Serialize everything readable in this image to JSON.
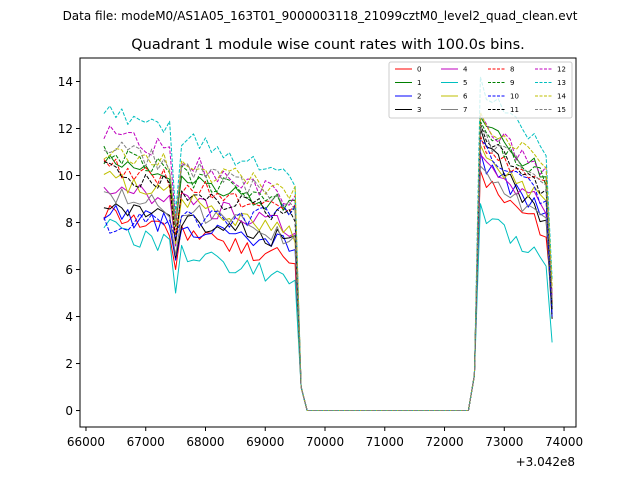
{
  "chart_data": {
    "type": "line",
    "suptitle": "Data file: modeM0/AS1A05_163T01_9000003118_21099cztM0_level2_quad_clean.evt",
    "title": "Quadrant 1 module wise count rates with 100.0s bins.",
    "xlabel": "",
    "ylabel": "",
    "x_offset_label": "+3.042e8",
    "xlim": [
      65900,
      74200
    ],
    "ylim": [
      -0.7,
      15.0
    ],
    "xticks": [
      66000,
      67000,
      68000,
      69000,
      70000,
      71000,
      72000,
      73000,
      74000
    ],
    "yticks": [
      0,
      2,
      4,
      6,
      8,
      10,
      12,
      14
    ],
    "xtick_labels": [
      "66000",
      "67000",
      "68000",
      "69000",
      "70000",
      "71000",
      "72000",
      "73000",
      "74000"
    ],
    "ytick_labels": [
      "0",
      "2",
      "4",
      "6",
      "8",
      "10",
      "12",
      "14"
    ],
    "legend_position": "top-right",
    "legend_columns": 4,
    "segments": {
      "seg1_x_start": 66300,
      "seg1_x_end": 69500,
      "gap_x_start": 69700,
      "gap_x_end": 72400,
      "seg2_x_start": 72600,
      "seg2_x_end": 73800,
      "step": 100
    },
    "series": [
      {
        "name": "0",
        "color": "#ff0000",
        "dash": "solid",
        "seg1_start": 8.5,
        "seg1_end": 6.3,
        "dip": 6.0,
        "peak": 10.2,
        "seg2_end": 7.6,
        "last": 4.8
      },
      {
        "name": "1",
        "color": "#008000",
        "dash": "solid",
        "seg1_start": 10.8,
        "seg1_end": 8.6,
        "dip": 7.9,
        "peak": 12.5,
        "seg2_end": 10.0,
        "last": 4.3
      },
      {
        "name": "2",
        "color": "#0000ff",
        "dash": "solid",
        "seg1_start": 8.4,
        "seg1_end": 7.0,
        "dip": 6.4,
        "peak": 11.0,
        "seg2_end": 8.3,
        "last": 4.1
      },
      {
        "name": "3",
        "color": "#000000",
        "dash": "solid",
        "seg1_start": 8.8,
        "seg1_end": 7.2,
        "dip": 6.5,
        "peak": 12.0,
        "seg2_end": 7.8,
        "last": 3.9
      },
      {
        "name": "4",
        "color": "#bf00bf",
        "dash": "solid",
        "seg1_start": 9.6,
        "seg1_end": 7.8,
        "dip": 7.0,
        "peak": 10.9,
        "seg2_end": 8.7,
        "last": 4.4
      },
      {
        "name": "5",
        "color": "#00bfbf",
        "dash": "solid",
        "seg1_start": 7.8,
        "seg1_end": 5.4,
        "dip": 5.0,
        "peak": 8.8,
        "seg2_end": 6.3,
        "last": 2.9
      },
      {
        "name": "6",
        "color": "#bfbf00",
        "dash": "solid",
        "seg1_start": 10.0,
        "seg1_end": 7.5,
        "dip": 7.1,
        "peak": 11.3,
        "seg2_end": 8.9,
        "last": 5.0
      },
      {
        "name": "7",
        "color": "#808080",
        "dash": "solid",
        "seg1_start": 9.2,
        "seg1_end": 7.4,
        "dip": 6.6,
        "peak": 10.4,
        "seg2_end": 8.0,
        "last": 4.2
      },
      {
        "name": "8",
        "color": "#ff0000",
        "dash": "dashed",
        "seg1_start": 10.5,
        "seg1_end": 8.3,
        "dip": 7.5,
        "peak": 11.7,
        "seg2_end": 9.4,
        "last": 4.6
      },
      {
        "name": "9",
        "color": "#008000",
        "dash": "dashed",
        "seg1_start": 11.0,
        "seg1_end": 8.7,
        "dip": 7.8,
        "peak": 12.3,
        "seg2_end": 9.8,
        "last": 4.5
      },
      {
        "name": "10",
        "color": "#0000ff",
        "dash": "dashed",
        "seg1_start": 7.9,
        "seg1_end": 8.4,
        "dip": 7.3,
        "peak": 11.5,
        "seg2_end": 9.0,
        "last": 4.0
      },
      {
        "name": "11",
        "color": "#000000",
        "dash": "dashed",
        "seg1_start": 10.2,
        "seg1_end": 8.2,
        "dip": 7.2,
        "peak": 12.2,
        "seg2_end": 9.3,
        "last": 4.3
      },
      {
        "name": "12",
        "color": "#bf00bf",
        "dash": "dashed",
        "seg1_start": 12.0,
        "seg1_end": 8.9,
        "dip": 8.1,
        "peak": 12.6,
        "seg2_end": 10.1,
        "last": 4.9
      },
      {
        "name": "13",
        "color": "#00bfbf",
        "dash": "dashed",
        "seg1_start": 13.0,
        "seg1_end": 9.8,
        "dip": 8.4,
        "peak": 14.2,
        "seg2_end": 11.2,
        "last": 5.6
      },
      {
        "name": "14",
        "color": "#bfbf00",
        "dash": "dashed",
        "seg1_start": 11.0,
        "seg1_end": 9.4,
        "dip": 8.0,
        "peak": 12.7,
        "seg2_end": 10.5,
        "last": 5.3
      },
      {
        "name": "15",
        "color": "#808080",
        "dash": "dashed",
        "seg1_start": 11.3,
        "seg1_end": 8.9,
        "dip": 7.9,
        "peak": 12.1,
        "seg2_end": 9.6,
        "last": 4.7
      }
    ]
  }
}
